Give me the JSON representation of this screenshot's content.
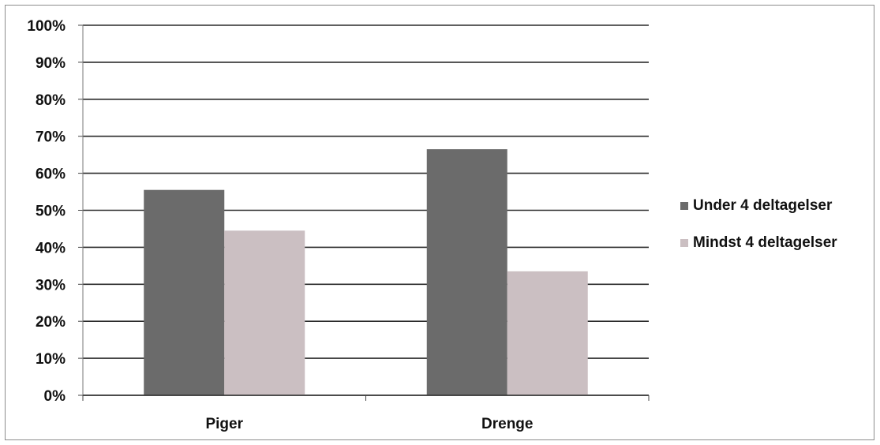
{
  "chart_data": {
    "type": "bar",
    "categories": [
      "Piger",
      "Drenge"
    ],
    "series": [
      {
        "name": "Under 4 deltagelser",
        "values": [
          55.5,
          66.5
        ],
        "color": "#6b6b6b"
      },
      {
        "name": "Mindst 4 deltagelser",
        "values": [
          44.5,
          33.5
        ],
        "color": "#cbbfc2"
      }
    ],
    "ylim": [
      0,
      100
    ],
    "yticks": [
      0,
      10,
      20,
      30,
      40,
      50,
      60,
      70,
      80,
      90,
      100
    ],
    "ytick_labels": [
      "0%",
      "10%",
      "20%",
      "30%",
      "40%",
      "50%",
      "60%",
      "70%",
      "80%",
      "90%",
      "100%"
    ],
    "title": "",
    "xlabel": "",
    "ylabel": "",
    "grid": true,
    "legend_position": "right"
  }
}
